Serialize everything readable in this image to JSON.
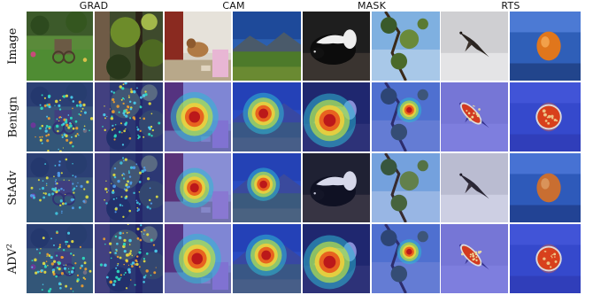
{
  "columns": [
    {
      "label": "GRAD"
    },
    {
      "label": "CAM"
    },
    {
      "label": "MASK"
    },
    {
      "label": "RTS"
    }
  ],
  "rows": [
    {
      "label": "Image",
      "sup": ""
    },
    {
      "label": "Benign",
      "sup": ""
    },
    {
      "label": "StAdv",
      "sup": ""
    },
    {
      "label": "ADV",
      "sup": "2"
    }
  ],
  "images": [
    "garden-cart",
    "forest-trees",
    "dog-on-floor",
    "mountain-field",
    "skunk",
    "tree-sky",
    "bird",
    "orange-fruit"
  ],
  "colors": {
    "overlay_blue": "#1d2ab0",
    "heat_red": "#d7201c",
    "heat_yellow": "#f2e83a",
    "heat_cyan": "#33c8d8"
  }
}
